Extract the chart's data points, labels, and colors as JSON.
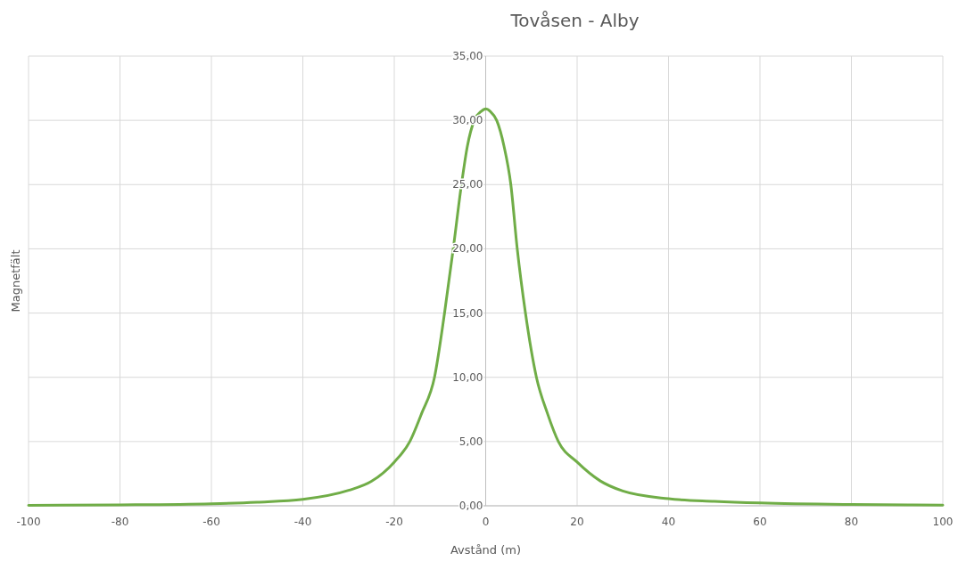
{
  "chart_data": {
    "type": "line",
    "title": "Tovåsen - Alby",
    "xlabel": "Avstånd (m)",
    "ylabel": "Magnetfält",
    "xlim": [
      -100,
      100
    ],
    "xticks": [
      -100,
      -80,
      -60,
      -40,
      -20,
      0,
      20,
      40,
      60,
      80,
      100
    ],
    "ylim": [
      0,
      35
    ],
    "yticks": [
      {
        "value": 0,
        "label": "0,00"
      },
      {
        "value": 5,
        "label": "5,00"
      },
      {
        "value": 10,
        "label": "10,00"
      },
      {
        "value": 15,
        "label": "15,00"
      },
      {
        "value": 20,
        "label": "20,00"
      },
      {
        "value": 25,
        "label": "25,00"
      },
      {
        "value": 30,
        "label": "30,00"
      },
      {
        "value": 35,
        "label": "35,00"
      }
    ],
    "grid": true,
    "marker": "none",
    "line_style": "solid",
    "x": [
      -100,
      -80,
      -60,
      -50,
      -40,
      -30,
      -25,
      -20,
      -16.6,
      -14,
      -11.2,
      -9,
      -7.1,
      -5.3,
      -4,
      -2.5,
      -1,
      0,
      1,
      2.4,
      4,
      5.5,
      6.9,
      8.7,
      11.1,
      13.5,
      15.9,
      20,
      25,
      30,
      40,
      50,
      60,
      80,
      100
    ],
    "series": [
      {
        "color": "#70ad47",
        "values": [
          0.04,
          0.07,
          0.16,
          0.28,
          0.5,
          1.2,
          1.9,
          3.4,
          5,
          7.2,
          10,
          15,
          20,
          25,
          28,
          30,
          30.7,
          30.9,
          30.7,
          30,
          28,
          25,
          20,
          15,
          10,
          7.2,
          5,
          3.4,
          1.95,
          1.15,
          0.55,
          0.35,
          0.22,
          0.1,
          0.06
        ]
      }
    ]
  }
}
